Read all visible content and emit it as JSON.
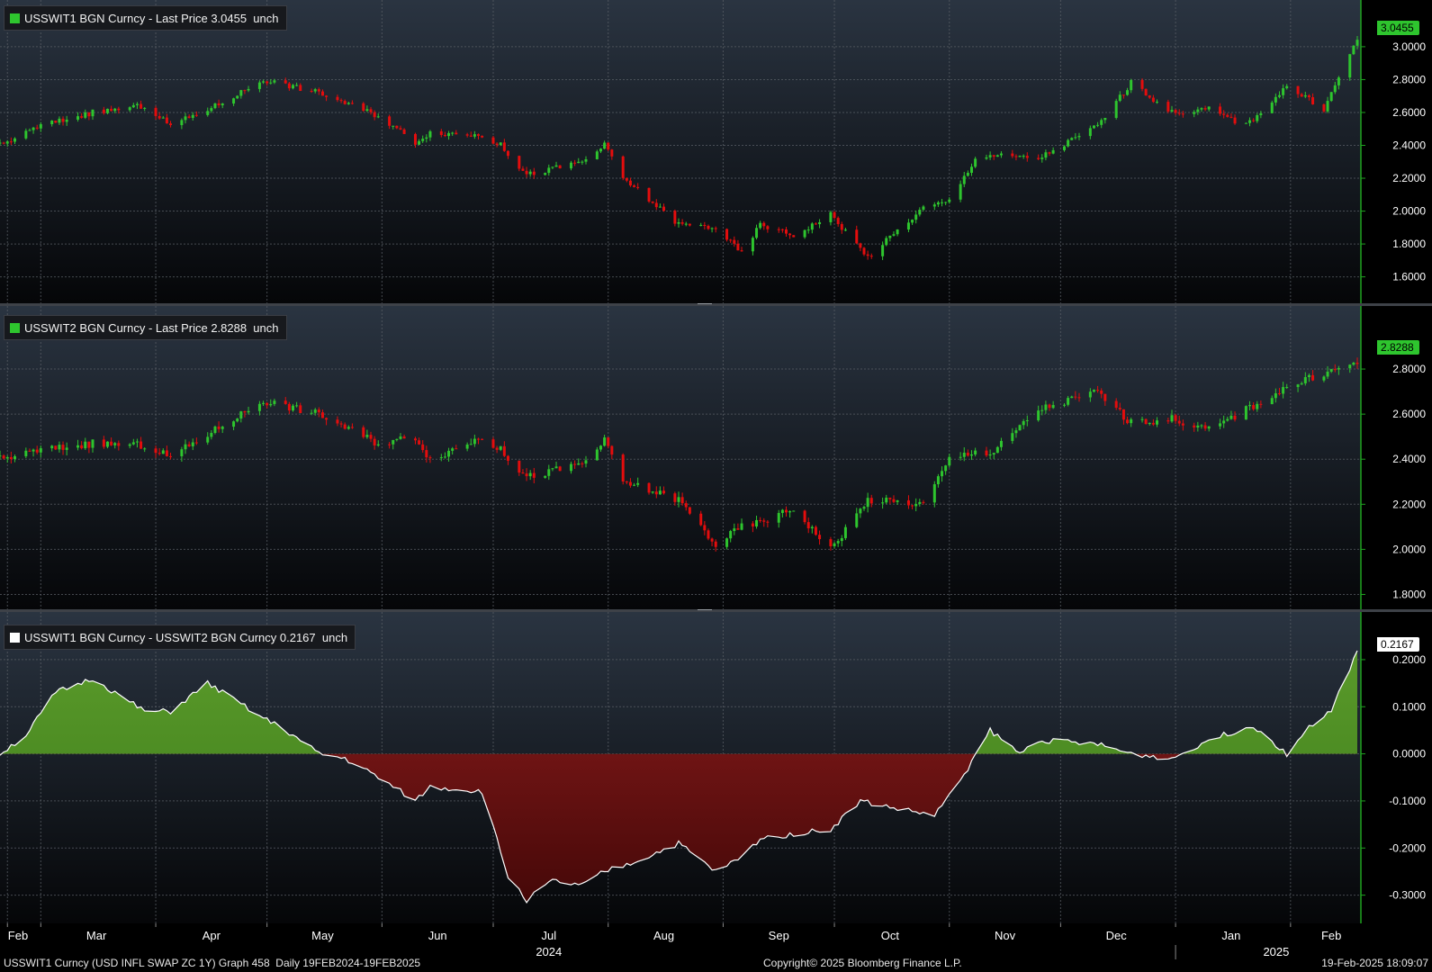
{
  "colors": {
    "up": "#2ec52e",
    "down": "#e30d0d",
    "axis_line": "#1fa31f",
    "area_pos": "#4e8f22",
    "area_neg": "#9c1a1a",
    "grid": "#5a5f66"
  },
  "legends": [
    {
      "label": "USSWIT1 BGN Curncy - Last Price 3.0455  unch",
      "swatch": "#2ec52e"
    },
    {
      "label": "USSWIT2 BGN Curncy - Last Price 2.8288  unch",
      "swatch": "#2ec52e"
    },
    {
      "label": "USSWIT1 BGN Curncy - USSWIT2 BGN Curncy 0.2167  unch",
      "swatch": "#ffffff"
    }
  ],
  "value_tags": [
    "3.0455",
    "2.8288",
    "0.2167"
  ],
  "x_axis": {
    "months": [
      "Feb",
      "Mar",
      "Apr",
      "May",
      "Jun",
      "Jul",
      "Aug",
      "Sep",
      "Oct",
      "Nov",
      "Dec",
      "Jan",
      "Feb"
    ],
    "years": [
      "2024",
      "2025"
    ]
  },
  "footer": {
    "left": "USSWIT1 Curncy (USD INFL SWAP ZC 1Y) Graph 458  Daily 19FEB2024-19FEB2025",
    "center": "Copyright© 2025 Bloomberg Finance L.P.",
    "right": "19-Feb-2025 18:09:07"
  },
  "chart_data": [
    {
      "type": "candlestick",
      "series_name": "USSWIT1 BGN Curncy",
      "y_ticks": [
        "3.0000",
        "2.8000",
        "2.6000",
        "2.4000",
        "2.2000",
        "2.0000",
        "1.8000",
        "1.6000"
      ],
      "ylim": [
        1.45,
        3.12
      ],
      "last": 3.0455,
      "x": [
        "2024-02-19",
        "2024-03-01",
        "2024-03-15",
        "2024-03-29",
        "2024-04-05",
        "2024-04-19",
        "2024-04-30",
        "2024-05-15",
        "2024-05-31",
        "2024-06-10",
        "2024-06-14",
        "2024-06-28",
        "2024-07-03",
        "2024-07-10",
        "2024-07-25",
        "2024-07-31",
        "2024-08-05",
        "2024-08-20",
        "2024-08-30",
        "2024-09-06",
        "2024-09-11",
        "2024-09-20",
        "2024-09-30",
        "2024-10-10",
        "2024-10-25",
        "2024-11-01",
        "2024-11-08",
        "2024-11-12",
        "2024-11-25",
        "2024-12-11",
        "2024-12-20",
        "2024-12-31",
        "2025-01-10",
        "2025-01-20",
        "2025-01-31",
        "2025-02-10",
        "2025-02-19"
      ],
      "values": [
        2.4,
        2.52,
        2.6,
        2.64,
        2.52,
        2.66,
        2.8,
        2.72,
        2.58,
        2.42,
        2.48,
        2.46,
        2.4,
        2.22,
        2.3,
        2.4,
        2.2,
        1.92,
        1.9,
        1.74,
        1.92,
        1.85,
        1.98,
        1.72,
        2.02,
        2.06,
        2.32,
        2.34,
        2.32,
        2.52,
        2.78,
        2.6,
        2.62,
        2.52,
        2.76,
        2.62,
        3.05
      ]
    },
    {
      "type": "candlestick",
      "series_name": "USSWIT2 BGN Curncy",
      "y_ticks": [
        "2.8000",
        "2.6000",
        "2.4000",
        "2.2000",
        "2.0000",
        "1.8000"
      ],
      "ylim": [
        1.75,
        2.92
      ],
      "last": 2.8288,
      "x": [
        "2024-02-19",
        "2024-03-01",
        "2024-03-15",
        "2024-03-29",
        "2024-04-05",
        "2024-04-19",
        "2024-04-30",
        "2024-05-15",
        "2024-05-31",
        "2024-06-10",
        "2024-06-14",
        "2024-06-28",
        "2024-07-03",
        "2024-07-10",
        "2024-07-25",
        "2024-07-31",
        "2024-08-05",
        "2024-08-20",
        "2024-08-30",
        "2024-09-06",
        "2024-09-11",
        "2024-09-20",
        "2024-09-30",
        "2024-10-10",
        "2024-10-25",
        "2024-11-01",
        "2024-11-08",
        "2024-11-12",
        "2024-11-25",
        "2024-12-11",
        "2024-12-20",
        "2024-12-31",
        "2025-01-10",
        "2025-01-20",
        "2025-01-31",
        "2025-02-10",
        "2025-02-19"
      ],
      "values": [
        2.4,
        2.44,
        2.47,
        2.46,
        2.41,
        2.55,
        2.66,
        2.6,
        2.47,
        2.5,
        2.4,
        2.5,
        2.44,
        2.32,
        2.38,
        2.48,
        2.3,
        2.22,
        2.02,
        2.1,
        2.12,
        2.18,
        2.0,
        2.22,
        2.2,
        2.4,
        2.44,
        2.42,
        2.62,
        2.7,
        2.56,
        2.58,
        2.53,
        2.62,
        2.72,
        2.78,
        2.83
      ]
    },
    {
      "type": "area",
      "series_name": "USSWIT1 BGN Curncy - USSWIT2 BGN Curncy",
      "y_ticks": [
        "0.2000",
        "0.1000",
        "0.0000",
        "-0.1000",
        "-0.2000",
        "-0.3000"
      ],
      "ylim": [
        -0.36,
        0.24
      ],
      "last": 0.2167,
      "x": [
        "2024-02-19",
        "2024-02-26",
        "2024-03-05",
        "2024-03-15",
        "2024-03-29",
        "2024-04-05",
        "2024-04-15",
        "2024-04-29",
        "2024-05-06",
        "2024-05-15",
        "2024-05-22",
        "2024-05-31",
        "2024-06-10",
        "2024-06-14",
        "2024-06-28",
        "2024-07-05",
        "2024-07-10",
        "2024-07-17",
        "2024-07-25",
        "2024-07-31",
        "2024-08-08",
        "2024-08-20",
        "2024-08-30",
        "2024-09-06",
        "2024-09-11",
        "2024-09-20",
        "2024-09-30",
        "2024-10-08",
        "2024-10-20",
        "2024-10-28",
        "2024-11-01",
        "2024-11-06",
        "2024-11-12",
        "2024-11-20",
        "2024-11-25",
        "2024-12-11",
        "2024-12-20",
        "2024-12-31",
        "2025-01-10",
        "2025-01-22",
        "2025-01-31",
        "2025-02-05",
        "2025-02-12",
        "2025-02-19"
      ],
      "values": [
        0.0,
        0.04,
        0.13,
        0.16,
        0.09,
        0.09,
        0.15,
        0.08,
        0.05,
        0.0,
        -0.01,
        -0.05,
        -0.1,
        -0.07,
        -0.08,
        -0.26,
        -0.31,
        -0.27,
        -0.28,
        -0.25,
        -0.23,
        -0.19,
        -0.25,
        -0.22,
        -0.18,
        -0.17,
        -0.16,
        -0.1,
        -0.12,
        -0.13,
        -0.09,
        -0.03,
        0.05,
        0.0,
        0.03,
        0.02,
        0.0,
        -0.01,
        0.03,
        0.06,
        0.0,
        0.05,
        0.09,
        0.22
      ]
    }
  ]
}
